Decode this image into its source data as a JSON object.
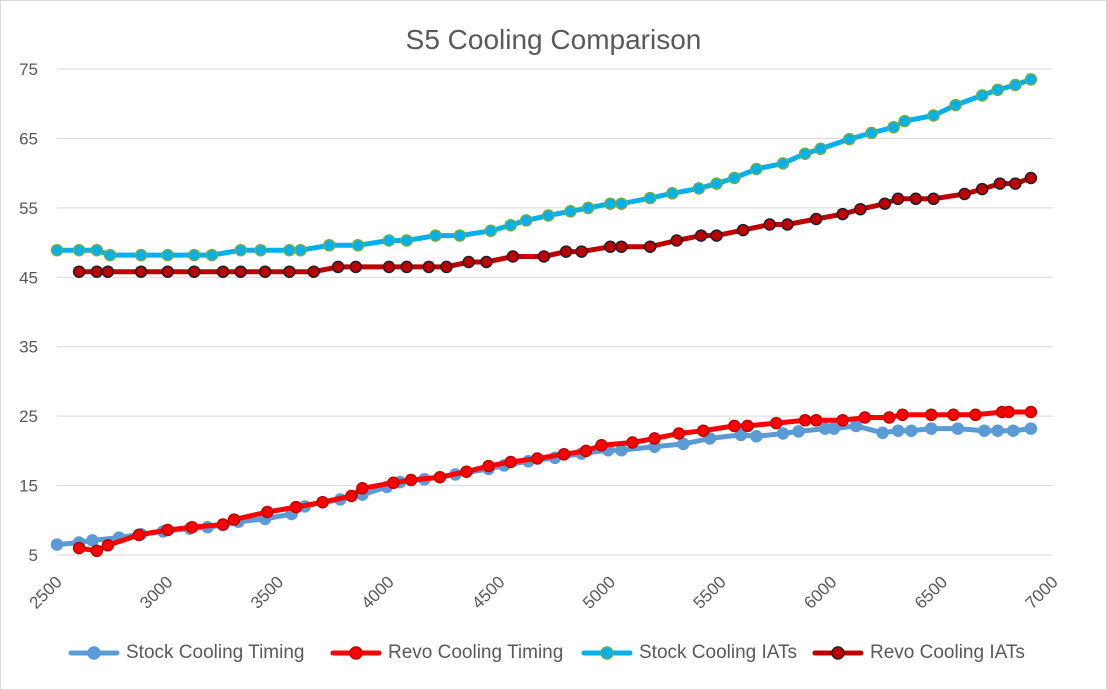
{
  "chart_data": {
    "type": "line",
    "title": "S5 Cooling Comparison",
    "xlabel": "",
    "ylabel": "",
    "xlim": [
      2500,
      7000
    ],
    "ylim": [
      5,
      75
    ],
    "x_ticks": [
      "2500",
      "3000",
      "3500",
      "4000",
      "4500",
      "5000",
      "5500",
      "6000",
      "6500",
      "7000"
    ],
    "y_ticks": [
      "5",
      "15",
      "25",
      "35",
      "45",
      "55",
      "65",
      "75"
    ],
    "grid": "horizontal",
    "legend_position": "bottom",
    "series": [
      {
        "name": "Stock Cooling Timing",
        "color": "#5b9bd5",
        "marker_fill": "#5b9bd5",
        "marker_edge": "#5b9bd5",
        "points": [
          [
            2500,
            6.5
          ],
          [
            2600,
            6.8
          ],
          [
            2660,
            7.1
          ],
          [
            2780,
            7.5
          ],
          [
            2880,
            8.0
          ],
          [
            2980,
            8.4
          ],
          [
            3100,
            8.8
          ],
          [
            3180,
            9.0
          ],
          [
            3250,
            9.3
          ],
          [
            3320,
            9.8
          ],
          [
            3440,
            10.2
          ],
          [
            3560,
            10.9
          ],
          [
            3620,
            12.0
          ],
          [
            3700,
            12.6
          ],
          [
            3780,
            13.0
          ],
          [
            3880,
            13.7
          ],
          [
            3990,
            14.8
          ],
          [
            4050,
            15.5
          ],
          [
            4160,
            15.9
          ],
          [
            4300,
            16.6
          ],
          [
            4450,
            17.4
          ],
          [
            4520,
            17.9
          ],
          [
            4630,
            18.5
          ],
          [
            4750,
            19.0
          ],
          [
            4870,
            19.6
          ],
          [
            4990,
            20.1
          ],
          [
            5050,
            20.1
          ],
          [
            5200,
            20.6
          ],
          [
            5330,
            21.0
          ],
          [
            5450,
            21.8
          ],
          [
            5590,
            22.3
          ],
          [
            5660,
            22.1
          ],
          [
            5780,
            22.5
          ],
          [
            5850,
            22.8
          ],
          [
            5970,
            23.2
          ],
          [
            6010,
            23.2
          ],
          [
            6110,
            23.6
          ],
          [
            6230,
            22.6
          ],
          [
            6300,
            22.9
          ],
          [
            6360,
            22.9
          ],
          [
            6450,
            23.2
          ],
          [
            6570,
            23.2
          ],
          [
            6690,
            22.9
          ],
          [
            6750,
            22.9
          ],
          [
            6820,
            22.9
          ],
          [
            6900,
            23.2
          ]
        ]
      },
      {
        "name": "Revo Cooling Timing",
        "color": "#ff0000",
        "marker_fill": "#ff0000",
        "marker_edge": "#c00000",
        "points": [
          [
            2600,
            6.0
          ],
          [
            2680,
            5.6
          ],
          [
            2730,
            6.4
          ],
          [
            2870,
            7.9
          ],
          [
            3000,
            8.6
          ],
          [
            3110,
            9.0
          ],
          [
            3250,
            9.4
          ],
          [
            3300,
            10.1
          ],
          [
            3450,
            11.2
          ],
          [
            3580,
            11.9
          ],
          [
            3700,
            12.6
          ],
          [
            3830,
            13.5
          ],
          [
            3880,
            14.6
          ],
          [
            4020,
            15.4
          ],
          [
            4100,
            15.8
          ],
          [
            4230,
            16.2
          ],
          [
            4350,
            17.0
          ],
          [
            4450,
            17.8
          ],
          [
            4550,
            18.4
          ],
          [
            4670,
            18.9
          ],
          [
            4790,
            19.5
          ],
          [
            4890,
            20.0
          ],
          [
            4960,
            20.8
          ],
          [
            5100,
            21.2
          ],
          [
            5200,
            21.8
          ],
          [
            5310,
            22.5
          ],
          [
            5420,
            22.9
          ],
          [
            5560,
            23.6
          ],
          [
            5620,
            23.6
          ],
          [
            5750,
            24.0
          ],
          [
            5880,
            24.4
          ],
          [
            5930,
            24.4
          ],
          [
            6050,
            24.4
          ],
          [
            6150,
            24.8
          ],
          [
            6260,
            24.8
          ],
          [
            6320,
            25.2
          ],
          [
            6450,
            25.2
          ],
          [
            6550,
            25.2
          ],
          [
            6650,
            25.2
          ],
          [
            6770,
            25.6
          ],
          [
            6800,
            25.6
          ],
          [
            6900,
            25.6
          ]
        ]
      },
      {
        "name": "Stock Cooling IATs",
        "color": "#00b0f0",
        "marker_fill": "#00b0f0",
        "marker_edge": "#70ad47",
        "points": [
          [
            2500,
            48.9
          ],
          [
            2600,
            48.9
          ],
          [
            2680,
            48.9
          ],
          [
            2740,
            48.2
          ],
          [
            2880,
            48.2
          ],
          [
            3000,
            48.2
          ],
          [
            3120,
            48.2
          ],
          [
            3200,
            48.2
          ],
          [
            3330,
            48.9
          ],
          [
            3420,
            48.9
          ],
          [
            3550,
            48.9
          ],
          [
            3600,
            48.9
          ],
          [
            3730,
            49.6
          ],
          [
            3860,
            49.6
          ],
          [
            4000,
            50.3
          ],
          [
            4080,
            50.3
          ],
          [
            4210,
            51.0
          ],
          [
            4320,
            51.0
          ],
          [
            4460,
            51.7
          ],
          [
            4550,
            52.5
          ],
          [
            4620,
            53.2
          ],
          [
            4720,
            53.9
          ],
          [
            4820,
            54.5
          ],
          [
            4900,
            55.0
          ],
          [
            5000,
            55.6
          ],
          [
            5050,
            55.6
          ],
          [
            5180,
            56.4
          ],
          [
            5280,
            57.1
          ],
          [
            5400,
            57.8
          ],
          [
            5480,
            58.5
          ],
          [
            5560,
            59.3
          ],
          [
            5660,
            60.6
          ],
          [
            5780,
            61.4
          ],
          [
            5880,
            62.8
          ],
          [
            5950,
            63.5
          ],
          [
            6080,
            64.9
          ],
          [
            6180,
            65.8
          ],
          [
            6280,
            66.6
          ],
          [
            6330,
            67.5
          ],
          [
            6460,
            68.3
          ],
          [
            6560,
            69.8
          ],
          [
            6680,
            71.2
          ],
          [
            6750,
            72.0
          ],
          [
            6830,
            72.7
          ],
          [
            6900,
            73.5
          ]
        ]
      },
      {
        "name": "Revo Cooling IATs",
        "color": "#c00000",
        "marker_fill": "#c00000",
        "marker_edge": "#1f1f2e",
        "points": [
          [
            2600,
            45.8
          ],
          [
            2680,
            45.8
          ],
          [
            2730,
            45.8
          ],
          [
            2880,
            45.8
          ],
          [
            3000,
            45.8
          ],
          [
            3120,
            45.8
          ],
          [
            3250,
            45.8
          ],
          [
            3330,
            45.8
          ],
          [
            3440,
            45.8
          ],
          [
            3550,
            45.8
          ],
          [
            3660,
            45.8
          ],
          [
            3770,
            46.5
          ],
          [
            3850,
            46.5
          ],
          [
            4000,
            46.5
          ],
          [
            4080,
            46.5
          ],
          [
            4180,
            46.5
          ],
          [
            4260,
            46.5
          ],
          [
            4360,
            47.2
          ],
          [
            4440,
            47.2
          ],
          [
            4560,
            48.0
          ],
          [
            4700,
            48.0
          ],
          [
            4800,
            48.7
          ],
          [
            4870,
            48.7
          ],
          [
            5000,
            49.4
          ],
          [
            5050,
            49.4
          ],
          [
            5180,
            49.4
          ],
          [
            5300,
            50.3
          ],
          [
            5410,
            51.0
          ],
          [
            5480,
            51.0
          ],
          [
            5600,
            51.8
          ],
          [
            5720,
            52.6
          ],
          [
            5800,
            52.6
          ],
          [
            5930,
            53.4
          ],
          [
            6050,
            54.1
          ],
          [
            6130,
            54.8
          ],
          [
            6240,
            55.6
          ],
          [
            6300,
            56.3
          ],
          [
            6380,
            56.3
          ],
          [
            6460,
            56.3
          ],
          [
            6600,
            57.0
          ],
          [
            6680,
            57.7
          ],
          [
            6760,
            58.5
          ],
          [
            6830,
            58.5
          ],
          [
            6900,
            59.3
          ]
        ]
      }
    ]
  }
}
